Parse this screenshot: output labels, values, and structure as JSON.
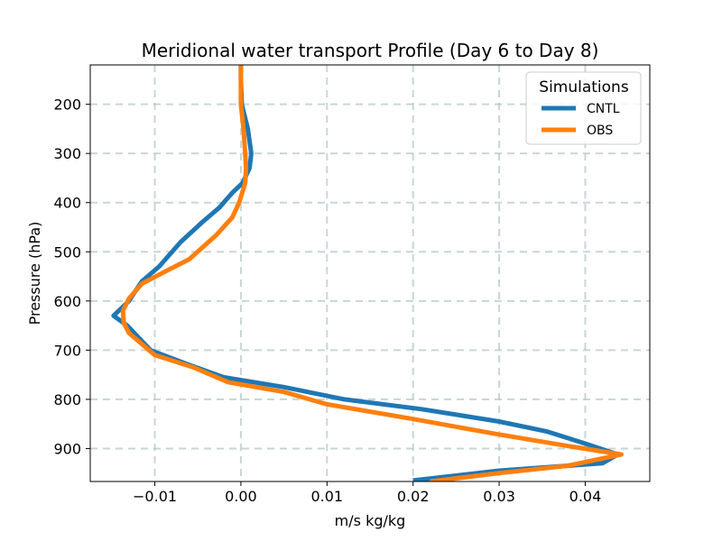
{
  "chart_data": {
    "type": "line",
    "title": "Meridional water transport Profile (Day 6 to Day 8)",
    "xlabel": "m/s kg/kg",
    "ylabel": "Pressure (hPa)",
    "xlim": [
      -0.0175,
      0.0475
    ],
    "ylim": [
      967,
      120
    ],
    "y_inverted": true,
    "grid": true,
    "xticks": [
      -0.01,
      0.0,
      0.01,
      0.02,
      0.03,
      0.04
    ],
    "xtick_labels": [
      "−0.01",
      "0.00",
      "0.01",
      "0.02",
      "0.03",
      "0.04"
    ],
    "yticks": [
      200,
      300,
      400,
      500,
      600,
      700,
      800,
      900
    ],
    "ytick_labels": [
      "200",
      "300",
      "400",
      "500",
      "600",
      "700",
      "800",
      "900"
    ],
    "legend": {
      "title": "Simulations",
      "placement": "upper right"
    },
    "series": [
      {
        "name": "CNTL",
        "color": "#1f77b4",
        "points": [
          [
            0.0,
            120
          ],
          [
            0.0,
            150
          ],
          [
            0.0001,
            200
          ],
          [
            0.0008,
            250
          ],
          [
            0.0012,
            300
          ],
          [
            0.001,
            330
          ],
          [
            0.0002,
            360
          ],
          [
            -0.001,
            380
          ],
          [
            -0.0025,
            410
          ],
          [
            -0.0045,
            440
          ],
          [
            -0.007,
            480
          ],
          [
            -0.0095,
            530
          ],
          [
            -0.0115,
            560
          ],
          [
            -0.013,
            600
          ],
          [
            -0.0148,
            630
          ],
          [
            -0.0132,
            650
          ],
          [
            -0.0105,
            700
          ],
          [
            -0.006,
            730
          ],
          [
            -0.002,
            755
          ],
          [
            0.005,
            775
          ],
          [
            0.012,
            800
          ],
          [
            0.021,
            820
          ],
          [
            0.03,
            845
          ],
          [
            0.0355,
            865
          ],
          [
            0.04,
            890
          ],
          [
            0.0438,
            912
          ],
          [
            0.042,
            930
          ],
          [
            0.03,
            945
          ],
          [
            0.02,
            965
          ]
        ]
      },
      {
        "name": "OBS",
        "color": "#ff7f0e",
        "points": [
          [
            0.0,
            120
          ],
          [
            0.0,
            150
          ],
          [
            0.0,
            200
          ],
          [
            0.0003,
            250
          ],
          [
            0.0005,
            300
          ],
          [
            0.0006,
            330
          ],
          [
            0.0005,
            360
          ],
          [
            -0.0002,
            400
          ],
          [
            -0.001,
            430
          ],
          [
            -0.0028,
            465
          ],
          [
            -0.006,
            515
          ],
          [
            -0.0088,
            540
          ],
          [
            -0.0115,
            565
          ],
          [
            -0.013,
            595
          ],
          [
            -0.0137,
            620
          ],
          [
            -0.0136,
            645
          ],
          [
            -0.013,
            665
          ],
          [
            -0.01,
            710
          ],
          [
            -0.0055,
            735
          ],
          [
            -0.0015,
            765
          ],
          [
            0.005,
            785
          ],
          [
            0.01,
            810
          ],
          [
            0.02,
            840
          ],
          [
            0.0295,
            870
          ],
          [
            0.038,
            895
          ],
          [
            0.0442,
            912
          ],
          [
            0.038,
            935
          ],
          [
            0.03,
            950
          ],
          [
            0.022,
            967
          ]
        ]
      }
    ]
  }
}
